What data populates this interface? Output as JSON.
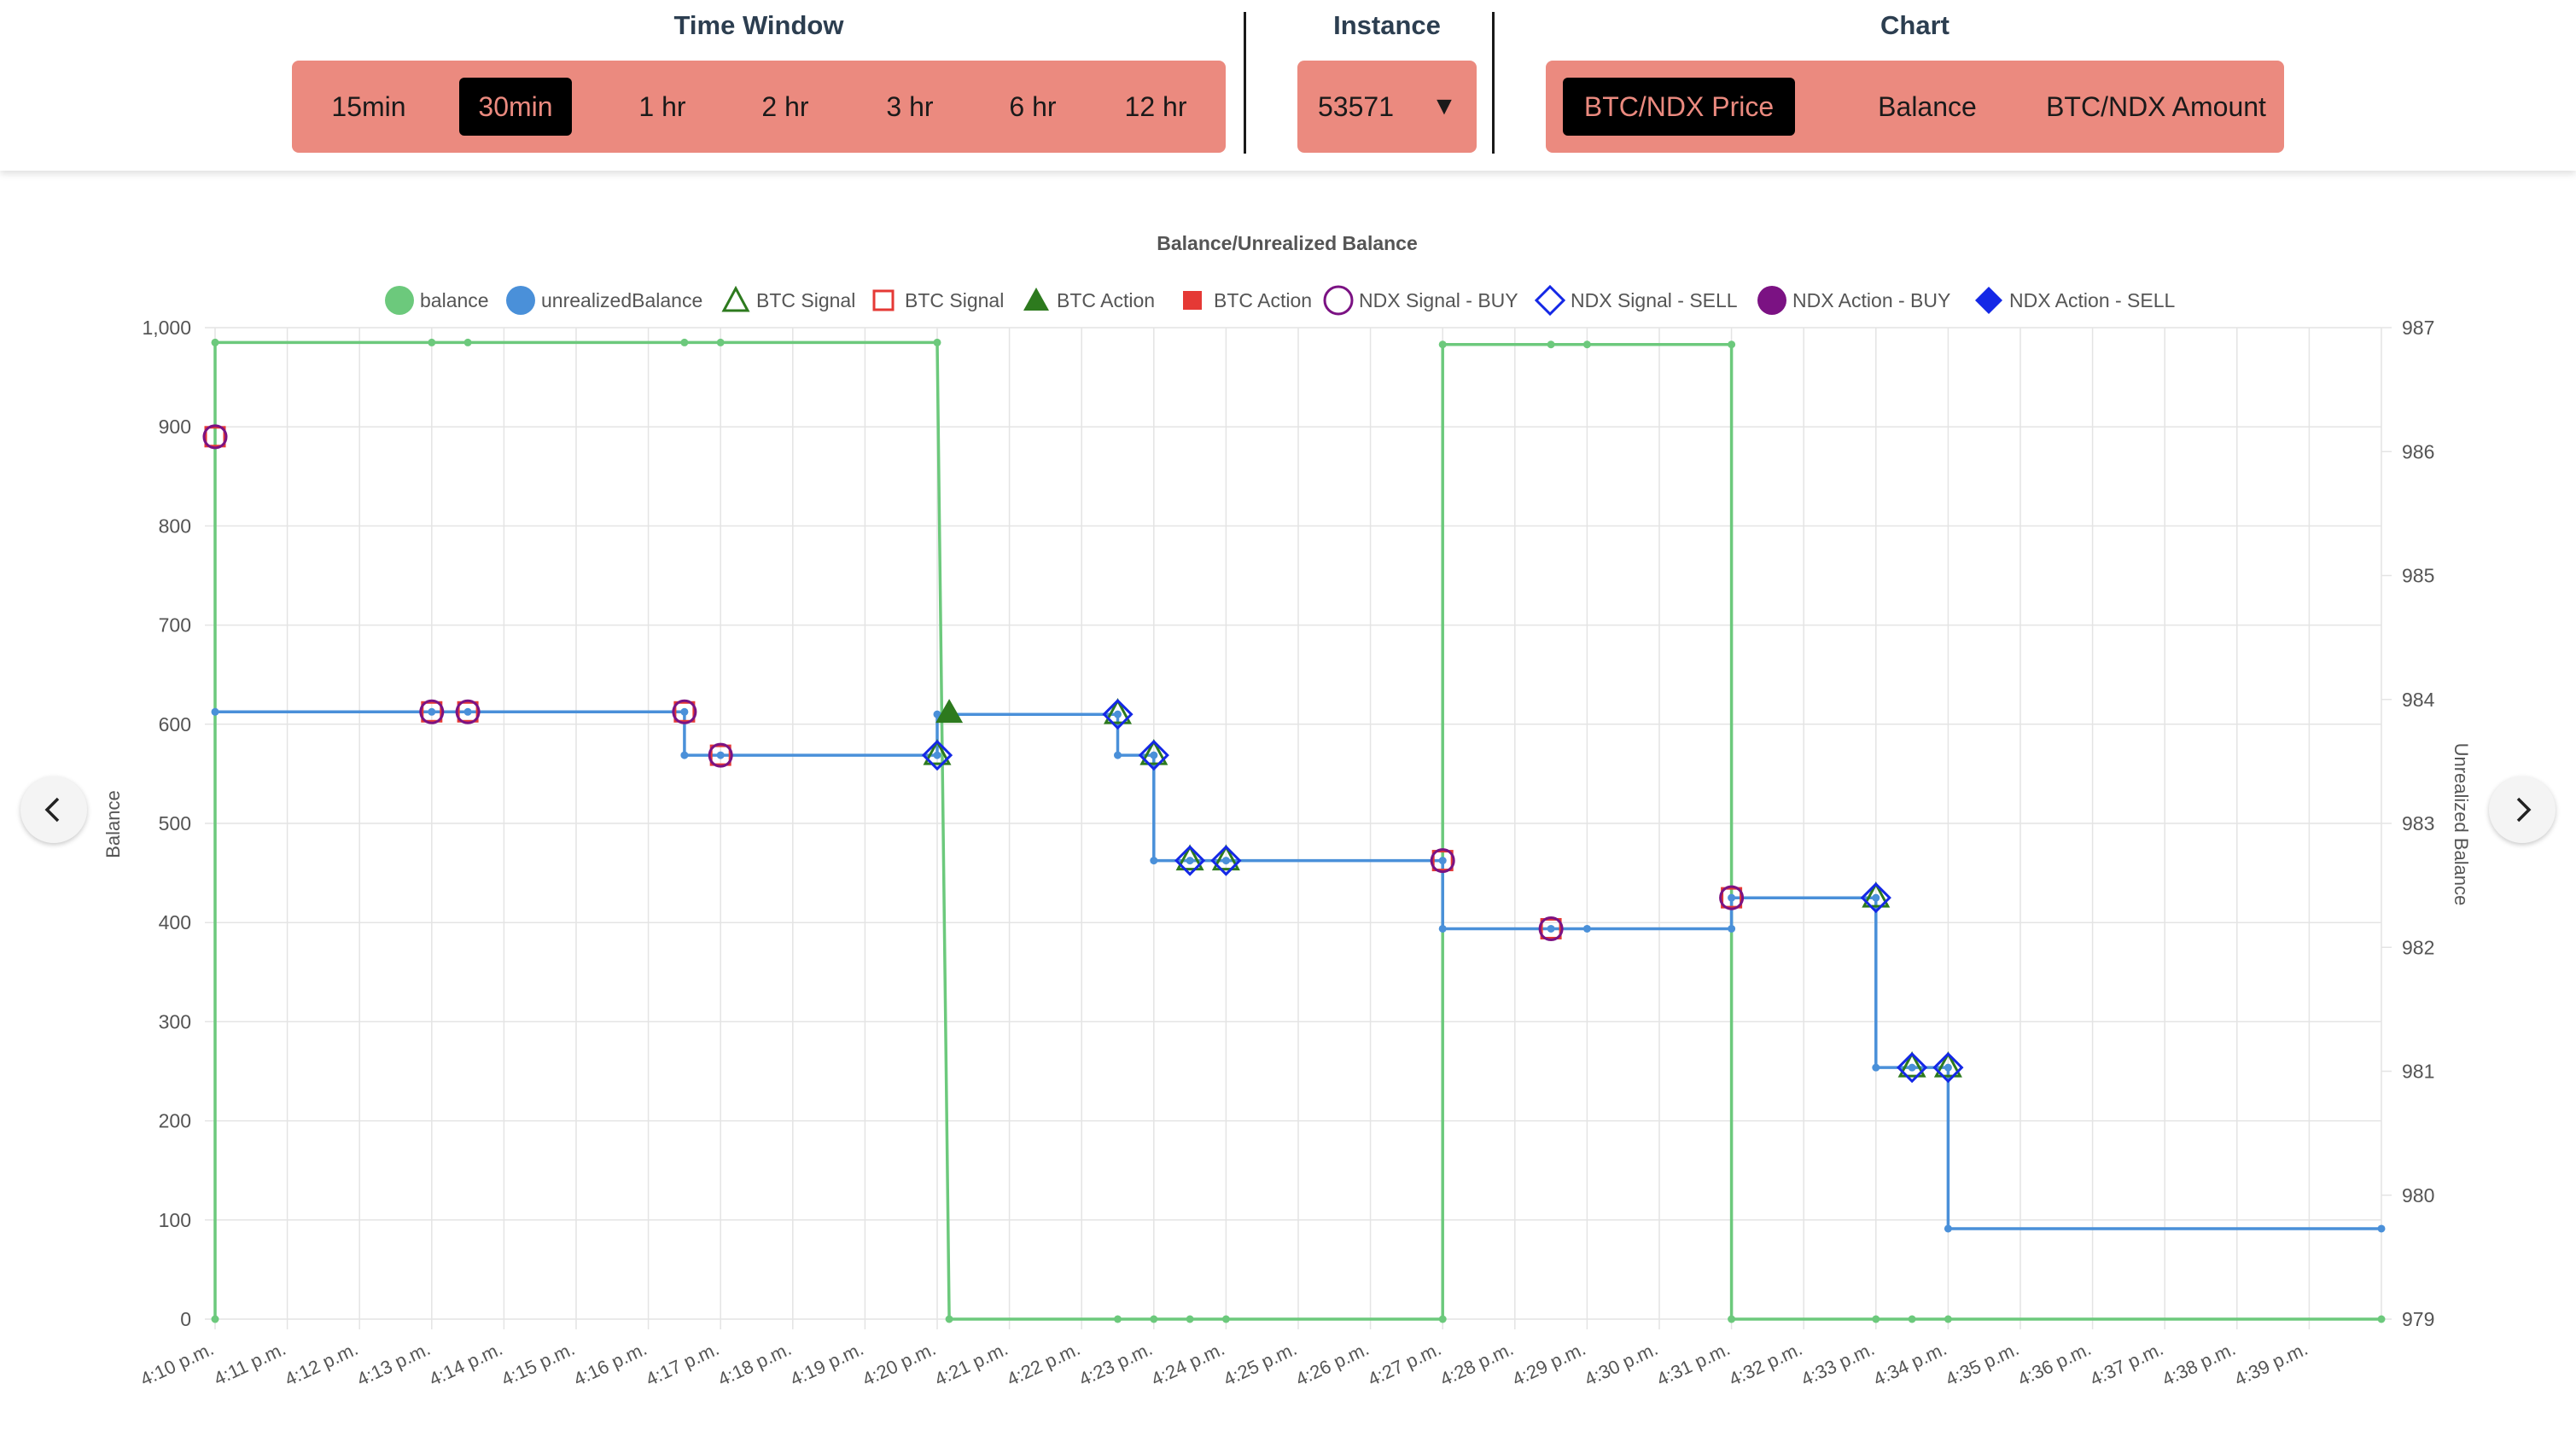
{
  "controls": {
    "time_window": {
      "title": "Time Window",
      "options": [
        "15min",
        "30min",
        "1 hr",
        "2 hr",
        "3 hr",
        "6 hr",
        "12 hr"
      ],
      "selected": "30min"
    },
    "instance": {
      "title": "Instance",
      "value": "53571",
      "arrow": "▼"
    },
    "chart": {
      "title": "Chart",
      "options": [
        "BTC/NDX Price",
        "Balance",
        "BTC/NDX Amount"
      ],
      "selected": "BTC/NDX Price"
    }
  },
  "nav": {
    "prev_icon": "chevron-left-icon",
    "next_icon": "chevron-right-icon"
  },
  "colors": {
    "pill": "#eb8a7f",
    "balance": "#6cc97c",
    "unrealized": "#4a90d9",
    "btc_signal": "#2d7a1e",
    "btc_action": "#e53935",
    "ndx_buy": "#7b1283",
    "ndx_sell": "#1428e6"
  },
  "chart_data": {
    "type": "line",
    "title": "Balance/Unrealized Balance",
    "ylabel": "Balance",
    "y2label": "Unrealized Balance",
    "ylim": [
      0,
      1000
    ],
    "y_ticks": [
      "0",
      "100",
      "200",
      "300",
      "400",
      "500",
      "600",
      "700",
      "800",
      "900",
      "1,000"
    ],
    "y2lim": [
      979,
      987
    ],
    "y2_ticks": [
      "979",
      "980",
      "981",
      "982",
      "983",
      "984",
      "985",
      "986",
      "987"
    ],
    "x_ticks": [
      "4:10 p.m.",
      "4:11 p.m.",
      "4:12 p.m.",
      "4:13 p.m.",
      "4:14 p.m.",
      "4:15 p.m.",
      "4:16 p.m.",
      "4:17 p.m.",
      "4:18 p.m.",
      "4:19 p.m.",
      "4:20 p.m.",
      "4:21 p.m.",
      "4:22 p.m.",
      "4:23 p.m.",
      "4:24 p.m.",
      "4:25 p.m.",
      "4:26 p.m.",
      "4:27 p.m.",
      "4:28 p.m.",
      "4:29 p.m.",
      "4:30 p.m.",
      "4:31 p.m.",
      "4:32 p.m.",
      "4:33 p.m.",
      "4:34 p.m.",
      "4:35 p.m.",
      "4:36 p.m.",
      "4:37 p.m.",
      "4:38 p.m.",
      "4:39 p.m."
    ],
    "x_range": [
      "4:10 p.m.",
      "4:40 p.m."
    ],
    "grid": true,
    "legend_position": "top",
    "legend": [
      "balance",
      "unrealizedBalance",
      "BTC Signal",
      "BTC Signal",
      "BTC Action",
      "BTC Action",
      "NDX Signal - BUY",
      "NDX Signal - SELL",
      "NDX Action - BUY",
      "NDX Action - SELL"
    ],
    "series": [
      {
        "name": "balance",
        "axis": "left",
        "step": true,
        "points": [
          [
            "4:10 p.m.",
            0
          ],
          [
            "4:10 p.m.",
            985
          ],
          [
            "4:13 p.m.",
            985
          ],
          [
            "4:13:30 p.m.",
            985
          ],
          [
            "4:16:30 p.m.",
            985
          ],
          [
            "4:17 p.m.",
            985
          ],
          [
            "4:20 p.m.",
            985
          ],
          [
            "4:20:10 p.m.",
            0
          ],
          [
            "4:22:30 p.m.",
            0
          ],
          [
            "4:23 p.m.",
            0
          ],
          [
            "4:23:30 p.m.",
            0
          ],
          [
            "4:24 p.m.",
            0
          ],
          [
            "4:27 p.m.",
            0
          ],
          [
            "4:27 p.m.",
            983
          ],
          [
            "4:28:30 p.m.",
            983
          ],
          [
            "4:29 p.m.",
            983
          ],
          [
            "4:31 p.m.",
            983
          ],
          [
            "4:31 p.m.",
            0
          ],
          [
            "4:33 p.m.",
            0
          ],
          [
            "4:33:30 p.m.",
            0
          ],
          [
            "4:34 p.m.",
            0
          ],
          [
            "4:40 p.m.",
            0
          ]
        ]
      },
      {
        "name": "unrealizedBalance",
        "axis": "right",
        "step": true,
        "points": [
          [
            "4:10 p.m.",
            983.9
          ],
          [
            "4:13 p.m.",
            983.9
          ],
          [
            "4:13:30 p.m.",
            983.9
          ],
          [
            "4:16:30 p.m.",
            983.9
          ],
          [
            "4:16:30 p.m.",
            983.55
          ],
          [
            "4:17 p.m.",
            983.55
          ],
          [
            "4:20 p.m.",
            983.55
          ],
          [
            "4:20 p.m.",
            983.88
          ],
          [
            "4:22:30 p.m.",
            983.88
          ],
          [
            "4:22:30 p.m.",
            983.55
          ],
          [
            "4:23 p.m.",
            983.55
          ],
          [
            "4:23 p.m.",
            982.7
          ],
          [
            "4:23:30 p.m.",
            982.7
          ],
          [
            "4:24 p.m.",
            982.7
          ],
          [
            "4:27 p.m.",
            982.7
          ],
          [
            "4:27 p.m.",
            982.15
          ],
          [
            "4:28:30 p.m.",
            982.15
          ],
          [
            "4:29 p.m.",
            982.15
          ],
          [
            "4:31 p.m.",
            982.15
          ],
          [
            "4:31 p.m.",
            982.4
          ],
          [
            "4:33 p.m.",
            982.4
          ],
          [
            "4:33 p.m.",
            981.03
          ],
          [
            "4:33:30 p.m.",
            981.03
          ],
          [
            "4:34 p.m.",
            981.03
          ],
          [
            "4:34 p.m.",
            979.73
          ],
          [
            "4:40 p.m.",
            979.73
          ]
        ]
      }
    ],
    "signals": [
      {
        "x": "4:10 p.m.",
        "y": 890,
        "axis": "left",
        "type": "NDX Signal - BUY"
      },
      {
        "x": "4:13 p.m.",
        "y": 983.9,
        "axis": "right",
        "type": "NDX Signal - BUY"
      },
      {
        "x": "4:13:30 p.m.",
        "y": 983.9,
        "axis": "right",
        "type": "NDX Signal - BUY"
      },
      {
        "x": "4:16:30 p.m.",
        "y": 983.9,
        "axis": "right",
        "type": "NDX Signal - BUY"
      },
      {
        "x": "4:17 p.m.",
        "y": 983.55,
        "axis": "right",
        "type": "NDX Signal - BUY"
      },
      {
        "x": "4:20 p.m.",
        "y": 983.55,
        "axis": "right",
        "type": "NDX Signal - SELL"
      },
      {
        "x": "4:20:10 p.m.",
        "y": 983.88,
        "axis": "right",
        "type": "BTC Action"
      },
      {
        "x": "4:22:30 p.m.",
        "y": 983.88,
        "axis": "right",
        "type": "NDX Signal - SELL"
      },
      {
        "x": "4:23 p.m.",
        "y": 983.55,
        "axis": "right",
        "type": "NDX Signal - SELL"
      },
      {
        "x": "4:23:30 p.m.",
        "y": 982.7,
        "axis": "right",
        "type": "NDX Signal - SELL"
      },
      {
        "x": "4:24 p.m.",
        "y": 982.7,
        "axis": "right",
        "type": "NDX Signal - SELL"
      },
      {
        "x": "4:27 p.m.",
        "y": 982.7,
        "axis": "right",
        "type": "NDX Signal - BUY"
      },
      {
        "x": "4:28:30 p.m.",
        "y": 982.15,
        "axis": "right",
        "type": "NDX Signal - BUY"
      },
      {
        "x": "4:31 p.m.",
        "y": 982.4,
        "axis": "right",
        "type": "NDX Signal - BUY"
      },
      {
        "x": "4:33 p.m.",
        "y": 982.4,
        "axis": "right",
        "type": "NDX Signal - SELL"
      },
      {
        "x": "4:33:30 p.m.",
        "y": 981.03,
        "axis": "right",
        "type": "NDX Signal - SELL"
      },
      {
        "x": "4:34 p.m.",
        "y": 981.03,
        "axis": "right",
        "type": "NDX Signal - SELL"
      }
    ]
  }
}
